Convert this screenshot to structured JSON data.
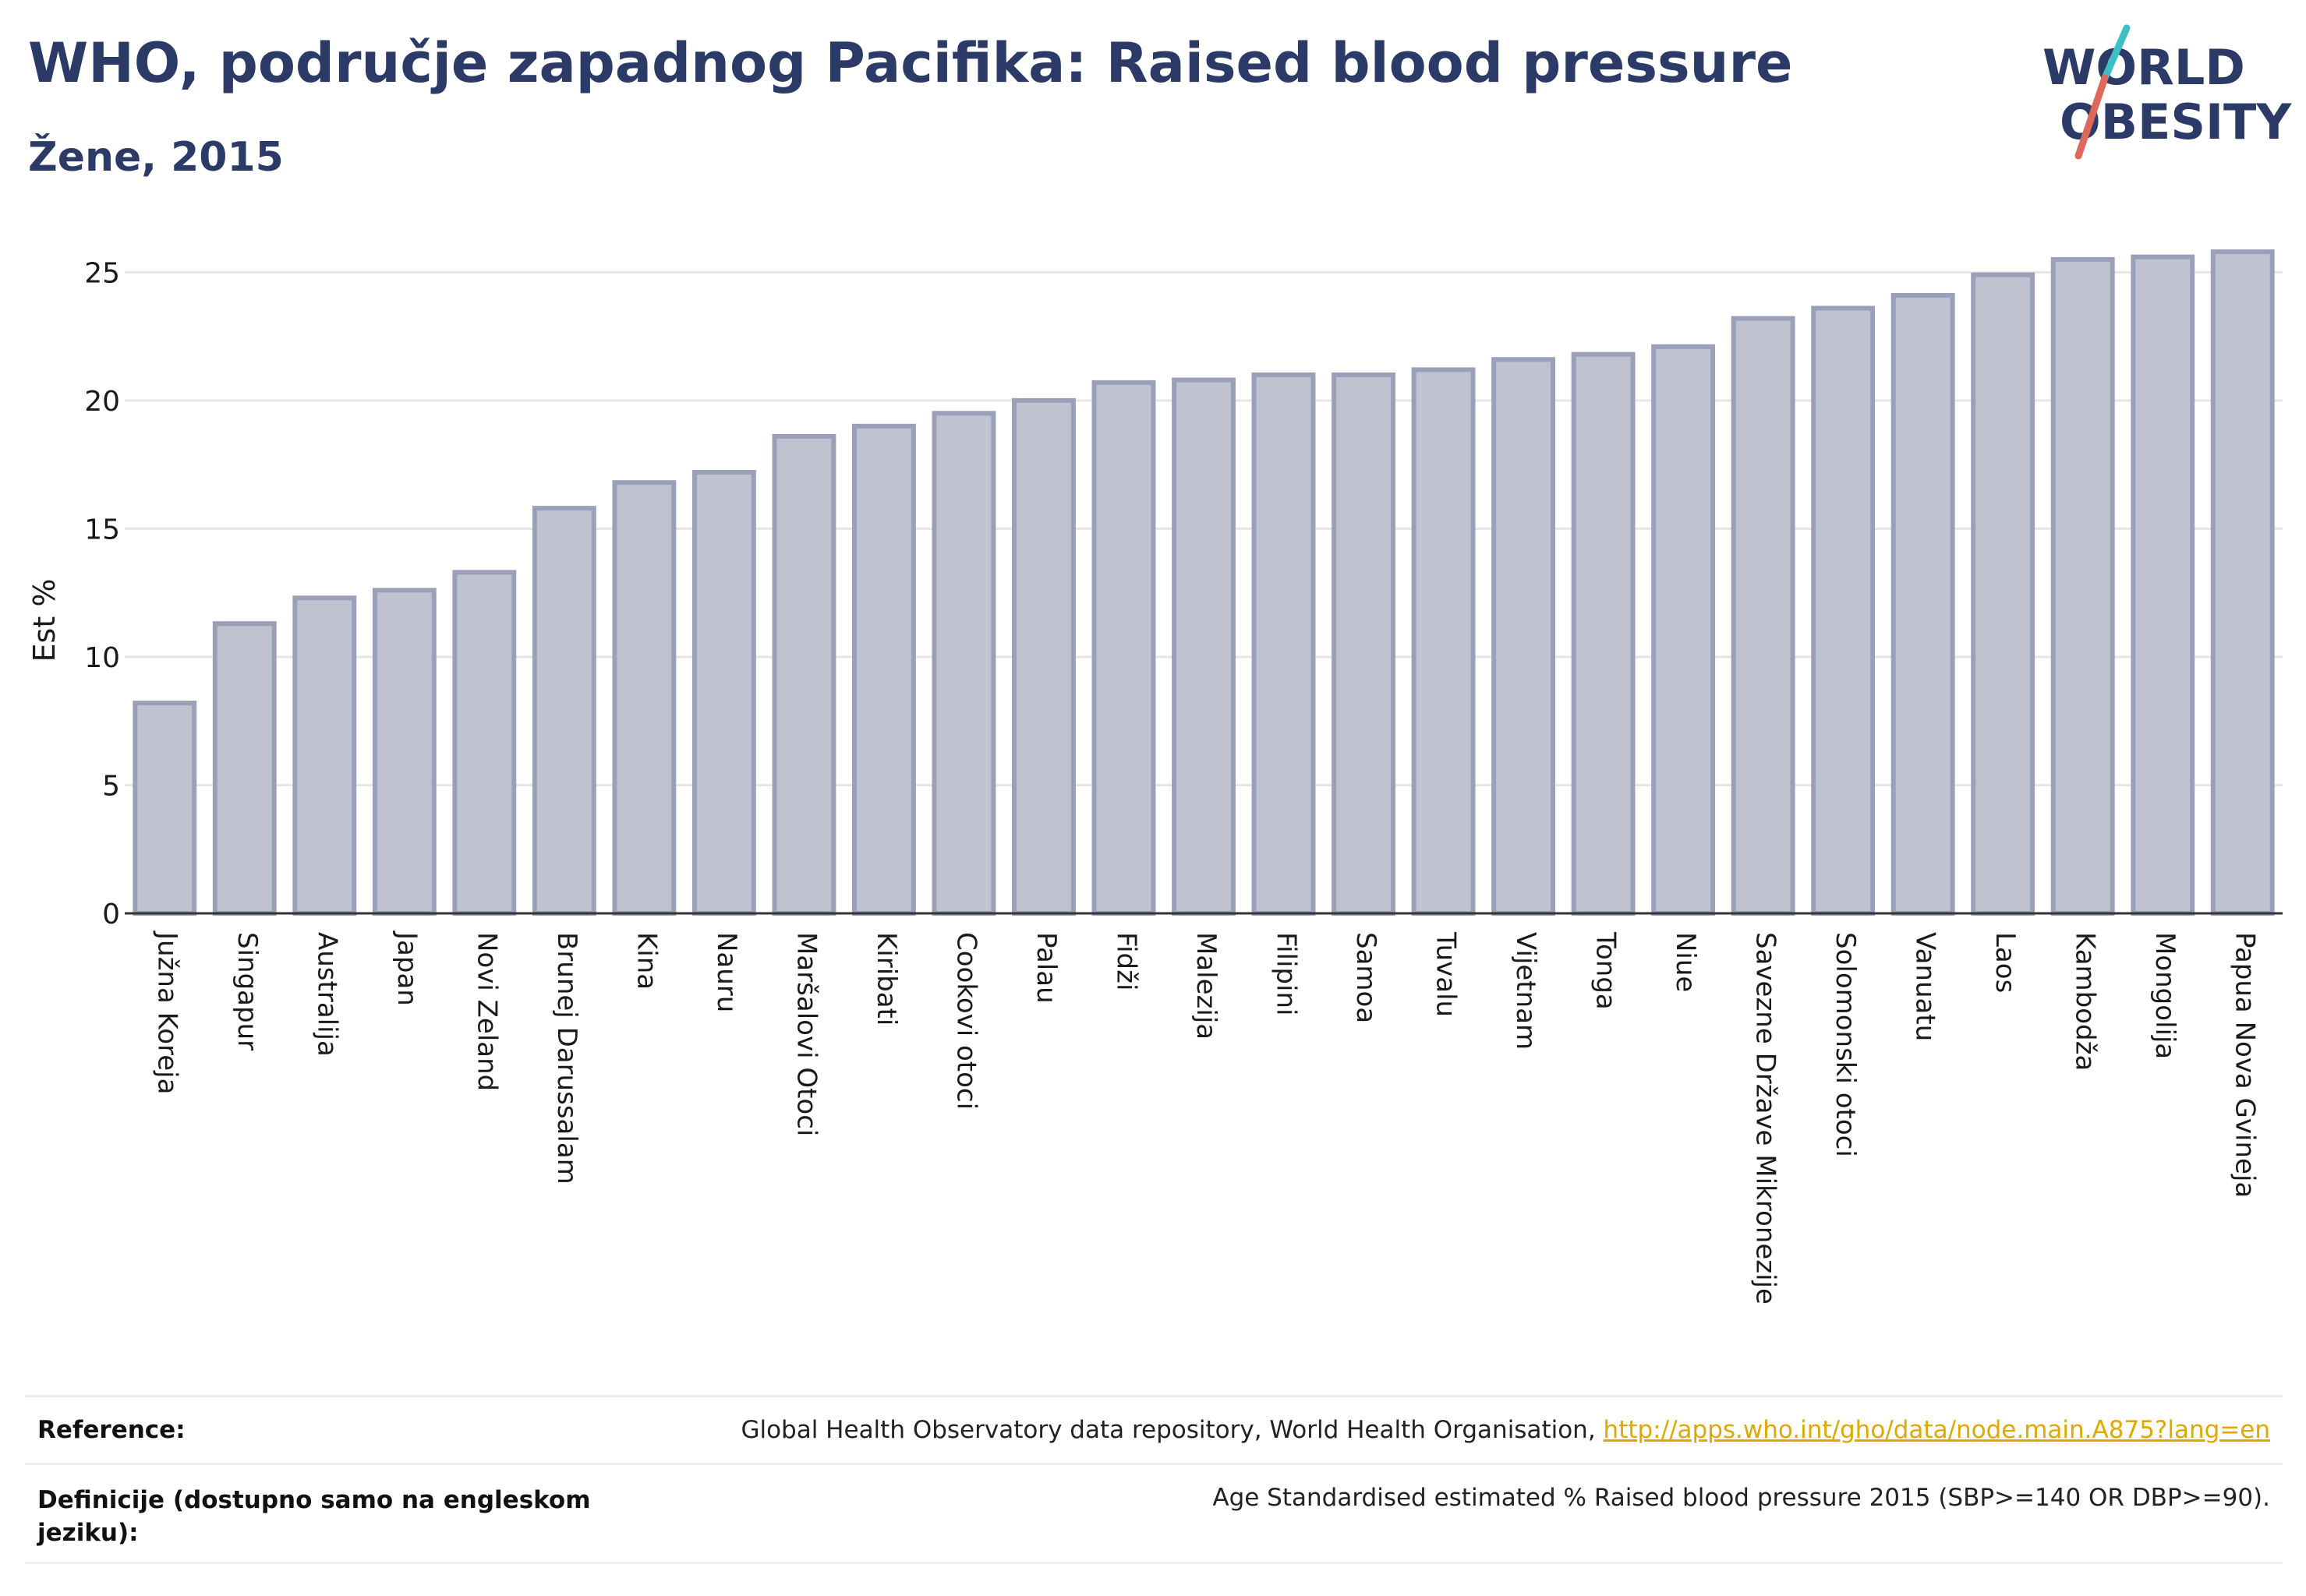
{
  "header": {
    "title": "WHO, područje zapadnog Pacifika: Raised blood pressure",
    "subtitle": "Žene, 2015"
  },
  "logo": {
    "line1": "WORLD",
    "line2": "OBESITY",
    "colors": {
      "text": "#2b3a67",
      "accent_teal": "#3cc0c6",
      "accent_red": "#e0685a"
    }
  },
  "chart_data": {
    "type": "bar",
    "ylabel": "Est %",
    "xlabel": "",
    "ylim": [
      0,
      26.5
    ],
    "yticks": [
      0,
      5,
      10,
      15,
      20,
      25
    ],
    "grid": true,
    "bar_fill": "#bfc3d0",
    "bar_stroke": "#9aa0b8",
    "categories": [
      "Južna Koreja",
      "Singapur",
      "Australija",
      "Japan",
      "Novi Zeland",
      "Brunej Darussalam",
      "Kina",
      "Nauru",
      "Maršalovi Otoci",
      "Kiribati",
      "Cookovi otoci",
      "Palau",
      "Fidži",
      "Malezija",
      "Filipini",
      "Samoa",
      "Tuvalu",
      "Vijetnam",
      "Tonga",
      "Niue",
      "Savezne Države Mikronezije",
      "Solomonski otoci",
      "Vanuatu",
      "Laos",
      "Kambodža",
      "Mongolija",
      "Papua Nova Gvineja"
    ],
    "values": [
      8.2,
      11.3,
      12.3,
      12.6,
      13.3,
      15.8,
      16.8,
      17.2,
      18.6,
      19.0,
      19.5,
      20.0,
      20.7,
      20.8,
      21.0,
      21.0,
      21.2,
      21.6,
      21.8,
      22.1,
      23.2,
      23.6,
      24.1,
      24.9,
      25.5,
      25.6,
      25.8
    ]
  },
  "reference": {
    "label": "Reference:",
    "text": "Global Health Observatory data repository, World Health Organisation, ",
    "link": "http://apps.who.int/gho/data/node.main.A875?lang=en"
  },
  "definitions": {
    "label_line1": "Definicije (dostupno samo na engleskom",
    "label_line2": "jeziku):",
    "text": "Age Standardised estimated % Raised blood pressure 2015 (SBP>=140 OR DBP>=90)."
  }
}
